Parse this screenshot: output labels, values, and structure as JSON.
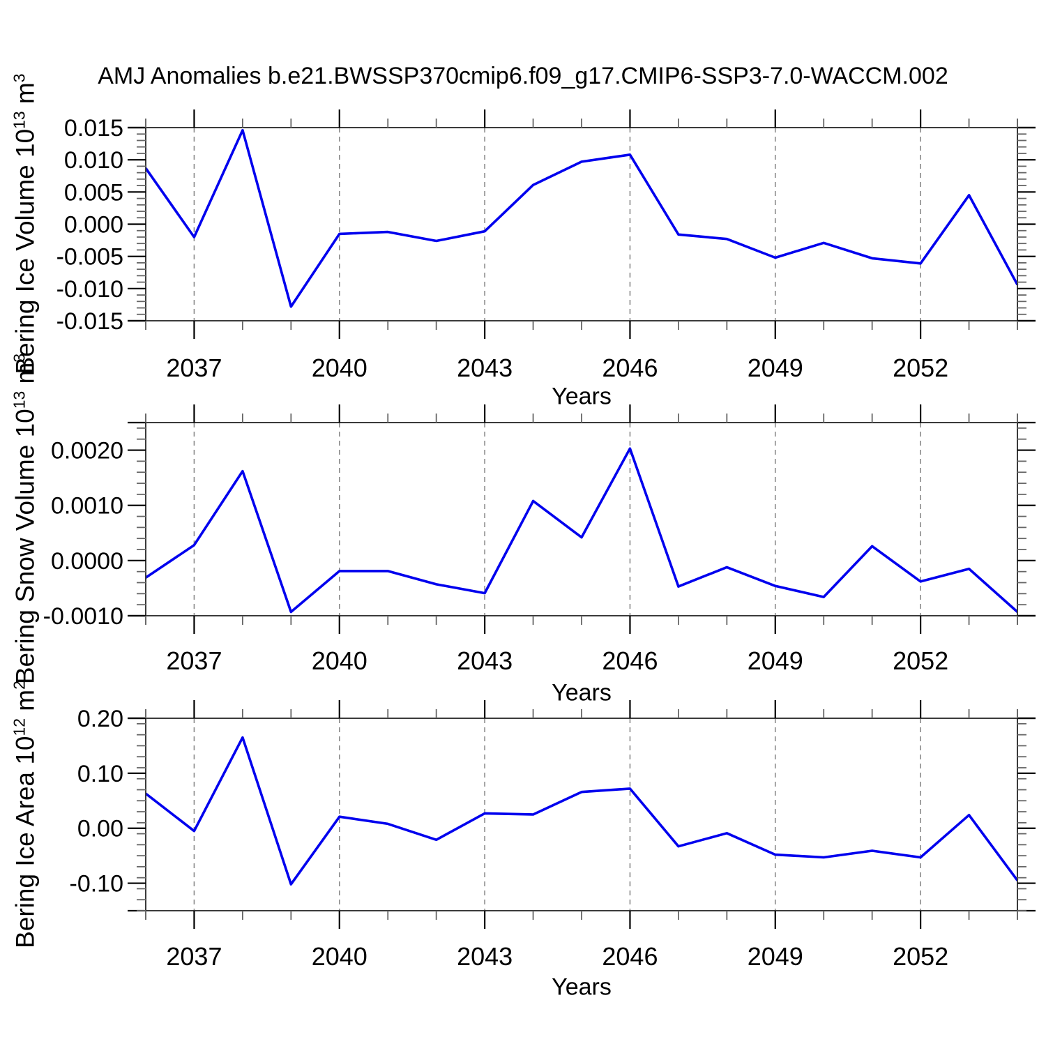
{
  "title": "AMJ Anomalies b.e21.BWSSP370cmip6.f09_g17.CMIP6-SSP3-7.0-WACCM.002",
  "x_axis_label": "Years",
  "y_titles": [
    {
      "base": "Bering Ice Volume 10",
      "exp": "13",
      "unit": " m",
      "unit_exp": "3"
    },
    {
      "base": "Bering Snow Volume 10",
      "exp": "13",
      "unit": " m",
      "unit_exp": "3"
    },
    {
      "base": "Bering Ice Area 10",
      "exp": "12",
      "unit": " m",
      "unit_exp": "2"
    }
  ],
  "colors": {
    "line": "#0000ee",
    "frame": "#3a3a3a",
    "major_tick": "#000000",
    "minor_tick": "#666666",
    "grid": "#8a8a8a",
    "text": "#000000"
  },
  "chart_data": [
    {
      "type": "line",
      "name": "bering-ice-volume",
      "ylabel": "Bering Ice Volume 10^13 m^3",
      "xlabel": "Years",
      "x": [
        2036,
        2037,
        2038,
        2039,
        2040,
        2041,
        2042,
        2043,
        2044,
        2045,
        2046,
        2047,
        2048,
        2049,
        2050,
        2051,
        2052,
        2053,
        2054
      ],
      "values": [
        0.0087,
        -0.002,
        0.0146,
        -0.0128,
        -0.0015,
        -0.0012,
        -0.0026,
        -0.0011,
        0.0061,
        0.0097,
        0.0108,
        -0.0016,
        -0.0023,
        -0.0052,
        -0.0029,
        -0.0053,
        -0.0061,
        0.0045,
        -0.0094
      ],
      "xlim": [
        2036,
        2054
      ],
      "ylim": [
        -0.015,
        0.015
      ],
      "xticks_major": [
        2037,
        2040,
        2043,
        2046,
        2049,
        2052
      ],
      "xtick_labels": [
        "2037",
        "2040",
        "2043",
        "2046",
        "2049",
        "2052"
      ],
      "x_minor_step": 1,
      "yticks_major": [
        0.015,
        0.01,
        0.005,
        0.0,
        -0.005,
        -0.01,
        -0.015
      ],
      "ytick_labels": [
        "0.015",
        "0.010",
        "0.005",
        "0.000",
        "-0.005",
        "-0.010",
        "-0.015"
      ],
      "y_minor_step": 0.001,
      "grid": "vertical-dashed"
    },
    {
      "type": "line",
      "name": "bering-snow-volume",
      "ylabel": "Bering Snow Volume 10^13 m^3",
      "xlabel": "Years",
      "x": [
        2036,
        2037,
        2038,
        2039,
        2040,
        2041,
        2042,
        2043,
        2044,
        2045,
        2046,
        2047,
        2048,
        2049,
        2050,
        2051,
        2052,
        2053,
        2054
      ],
      "values": [
        -0.00031,
        0.00028,
        0.00162,
        -0.00093,
        -0.00019,
        -0.00019,
        -0.00043,
        -0.00059,
        0.00108,
        0.00042,
        0.00203,
        -0.00047,
        -0.00012,
        -0.00046,
        -0.00066,
        0.00026,
        -0.00038,
        -0.00015,
        -0.00093
      ],
      "xlim": [
        2036,
        2054
      ],
      "ylim": [
        -0.001,
        0.0025
      ],
      "xticks_major": [
        2037,
        2040,
        2043,
        2046,
        2049,
        2052
      ],
      "xtick_labels": [
        "2037",
        "2040",
        "2043",
        "2046",
        "2049",
        "2052"
      ],
      "x_minor_step": 1,
      "yticks_major": [
        0.002,
        0.001,
        0.0,
        -0.001
      ],
      "ytick_labels": [
        "0.0020",
        "0.0010",
        "0.0000",
        "-0.0010"
      ],
      "y_minor_step": 0.0002,
      "grid": "vertical-dashed"
    },
    {
      "type": "line",
      "name": "bering-ice-area",
      "ylabel": "Bering Ice Area 10^12 m^2",
      "xlabel": "Years",
      "x": [
        2036,
        2037,
        2038,
        2039,
        2040,
        2041,
        2042,
        2043,
        2044,
        2045,
        2046,
        2047,
        2048,
        2049,
        2050,
        2051,
        2052,
        2053,
        2054
      ],
      "values": [
        0.063,
        -0.005,
        0.165,
        -0.102,
        0.021,
        0.008,
        -0.021,
        0.027,
        0.025,
        0.066,
        0.072,
        -0.033,
        -0.009,
        -0.048,
        -0.053,
        -0.041,
        -0.053,
        0.024,
        -0.095
      ],
      "xlim": [
        2036,
        2054
      ],
      "ylim": [
        -0.15,
        0.2
      ],
      "xticks_major": [
        2037,
        2040,
        2043,
        2046,
        2049,
        2052
      ],
      "xtick_labels": [
        "2037",
        "2040",
        "2043",
        "2046",
        "2049",
        "2052"
      ],
      "x_minor_step": 1,
      "yticks_major": [
        0.2,
        0.1,
        0.0,
        -0.1
      ],
      "ytick_labels": [
        "0.20",
        "0.10",
        "0.00",
        "-0.10"
      ],
      "y_minor_step": 0.02,
      "grid": "vertical-dashed"
    }
  ]
}
